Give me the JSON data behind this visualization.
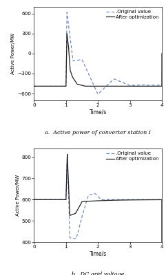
{
  "fig_width": 2.41,
  "fig_height": 4.0,
  "dpi": 100,
  "plot_a": {
    "xlim": [
      0,
      4
    ],
    "ylim": [
      -700,
      700
    ],
    "yticks": [
      -600,
      -300,
      0,
      300,
      600
    ],
    "xticks": [
      0,
      1,
      2,
      3,
      4
    ],
    "xlabel": "Time/s",
    "ylabel": "Active Power/MW",
    "caption": "a.  Active power of converter station I",
    "legend": [
      ".Original value",
      "After optimization"
    ]
  },
  "plot_b": {
    "xlim": [
      0,
      4
    ],
    "ylim": [
      400,
      840
    ],
    "yticks": [
      400,
      500,
      600,
      700,
      800
    ],
    "xticks": [
      0,
      1,
      2,
      3,
      4
    ],
    "xlabel": "Time/s",
    "ylabel": "Active Power/MW",
    "caption": "b.  DC grid voltage",
    "legend": [
      ".Original value",
      "After optimization"
    ]
  },
  "dashed_color": "#6080c0",
  "solid_color": "#222222",
  "background_color": "#ffffff"
}
